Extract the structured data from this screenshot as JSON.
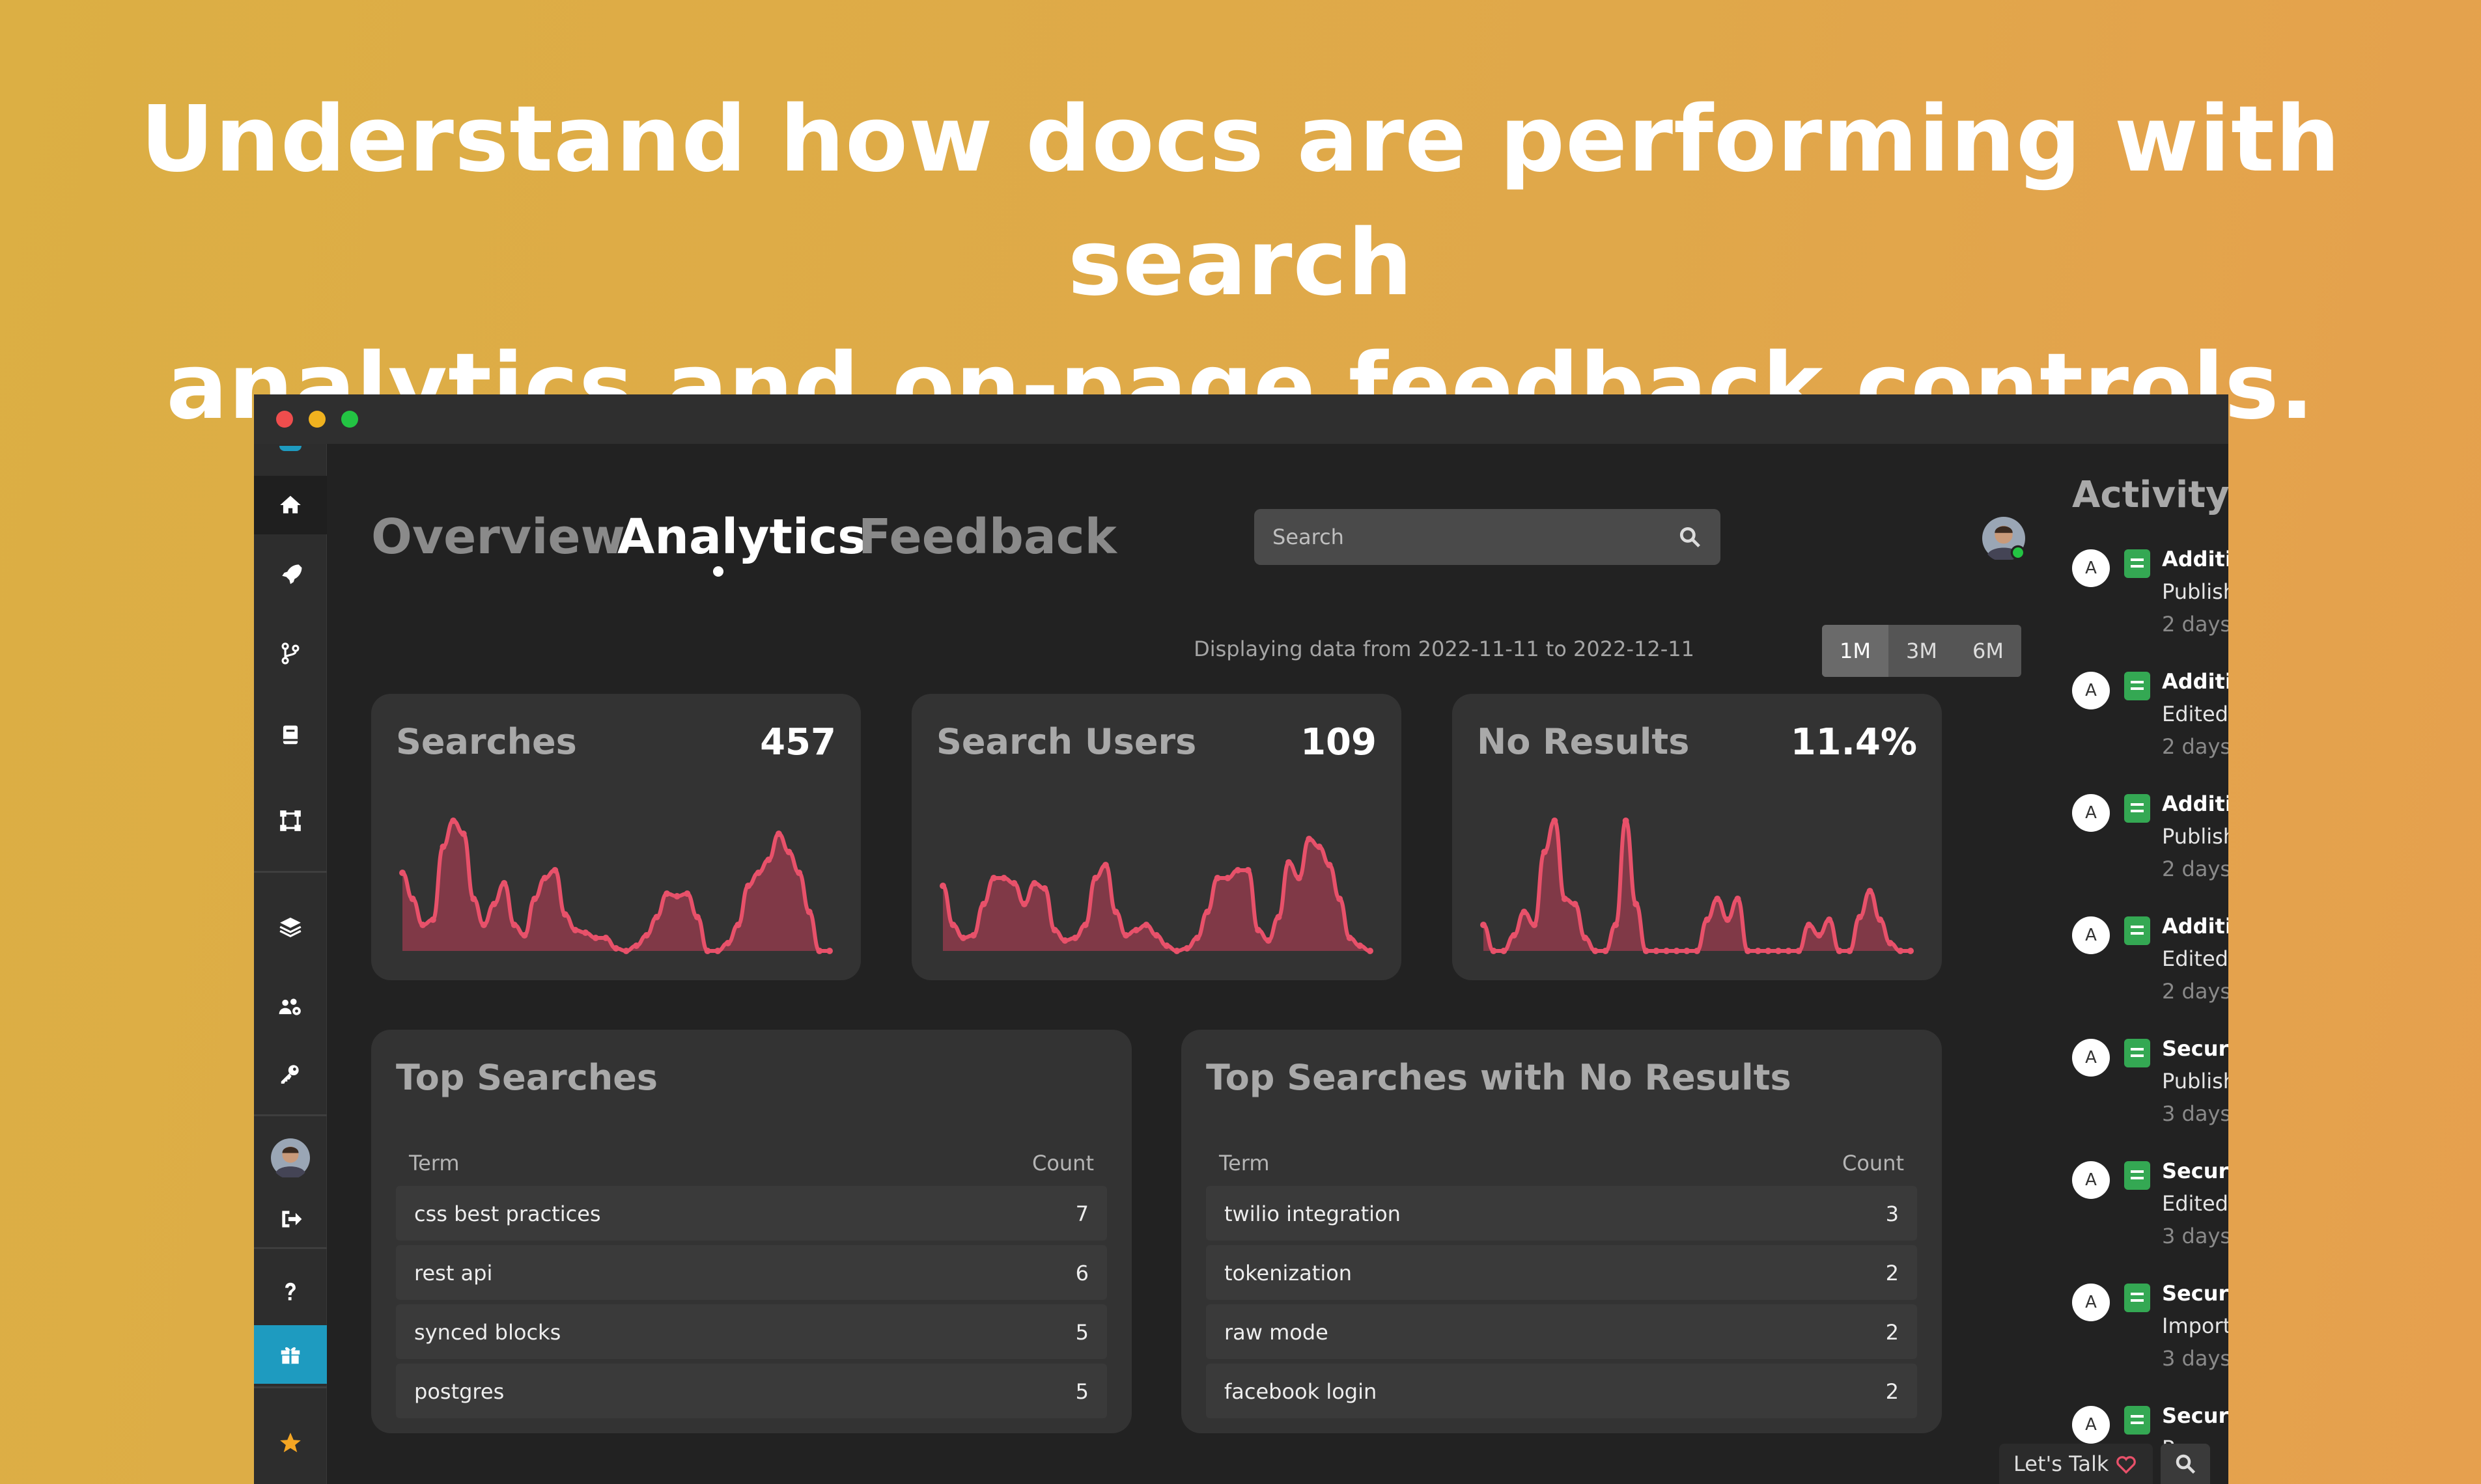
{
  "hero": {
    "line1": "Understand how docs are performing with search",
    "line2": "analytics and on-page feedback controls."
  },
  "nav": {
    "tabs": [
      "Overview",
      "Analytics",
      "Feedback"
    ],
    "active_tab": "Analytics"
  },
  "search": {
    "placeholder": "Search"
  },
  "date_range": {
    "text": "Displaying data from 2022-11-11 to 2022-12-11",
    "options": [
      "1M",
      "3M",
      "6M"
    ],
    "selected": "1M"
  },
  "stats": [
    {
      "title": "Searches",
      "value": "457",
      "series": [
        3,
        2,
        1,
        1.2,
        4,
        5,
        4.5,
        2,
        1,
        1.8,
        2.6,
        1,
        0.6,
        2,
        2.8,
        3.1,
        1.4,
        0.8,
        0.7,
        0.5,
        0.5,
        0.1,
        0,
        0.2,
        0.6,
        1.3,
        2.2,
        2.1,
        2.2,
        1.3,
        0,
        0,
        0.3,
        1,
        2.5,
        3,
        3.5,
        4.5,
        3.8,
        3,
        1.5,
        0,
        0
      ]
    },
    {
      "title": "Search Users",
      "value": "109",
      "series": [
        2.5,
        1,
        0.5,
        0.6,
        1.8,
        2.8,
        2.8,
        2.6,
        1.8,
        2.6,
        2.4,
        0.8,
        0.4,
        0.5,
        1,
        2.8,
        3.3,
        1.5,
        0.6,
        0.8,
        1,
        0.6,
        0.2,
        0,
        0.1,
        0.5,
        1.5,
        2.8,
        2.8,
        3.1,
        3.1,
        0.8,
        0.4,
        1.3,
        3.4,
        2.8,
        4.3,
        4,
        3.3,
        2,
        0.5,
        0.2,
        0
      ]
    },
    {
      "title": "No Results",
      "value": "11.4%",
      "series": [
        1,
        0,
        0,
        0.6,
        1.5,
        1,
        3.8,
        5,
        2,
        1.8,
        0.5,
        0,
        0,
        1,
        5,
        1.8,
        0,
        0,
        0,
        0,
        0,
        0,
        1.2,
        2,
        1.2,
        2,
        0,
        0,
        0,
        0,
        0,
        0,
        1,
        0.6,
        1.2,
        0,
        0,
        1.3,
        2.3,
        1.2,
        0.3,
        0,
        0
      ]
    }
  ],
  "top_searches": {
    "title": "Top Searches",
    "columns": [
      "Term",
      "Count"
    ],
    "rows": [
      {
        "term": "css best practices",
        "count": "7"
      },
      {
        "term": "rest api",
        "count": "6"
      },
      {
        "term": "synced blocks",
        "count": "5"
      },
      {
        "term": "postgres",
        "count": "5"
      }
    ]
  },
  "top_no_results": {
    "title": "Top Searches with No Results",
    "columns": [
      "Term",
      "Count"
    ],
    "rows": [
      {
        "term": "twilio integration",
        "count": "3"
      },
      {
        "term": "tokenization",
        "count": "2"
      },
      {
        "term": "raw mode",
        "count": "2"
      },
      {
        "term": "facebook login",
        "count": "2"
      }
    ]
  },
  "activity": {
    "title": "Activity",
    "items": [
      {
        "avatar": "A",
        "title": "Additic",
        "action": "Publish",
        "time": "2 days"
      },
      {
        "avatar": "A",
        "title": "Additic",
        "action": "Edited",
        "time": "2 days"
      },
      {
        "avatar": "A",
        "title": "Additic",
        "action": "Publish",
        "time": "2 days"
      },
      {
        "avatar": "A",
        "title": "Additic",
        "action": "Edited",
        "time": "2 days"
      },
      {
        "avatar": "A",
        "title": "Securi",
        "action": "Publish",
        "time": "3 days"
      },
      {
        "avatar": "A",
        "title": "Securi",
        "action": "Edited",
        "time": "3 days"
      },
      {
        "avatar": "A",
        "title": "Securi",
        "action": "Import",
        "time": "3 days"
      },
      {
        "avatar": "A",
        "title": "Securi",
        "action": "P",
        "time": ""
      }
    ]
  },
  "chat": {
    "label": "Let's Talk"
  },
  "colors": {
    "accent": "#e8516a",
    "fill": "#8e3b4b",
    "sidebar_active": "#1e9bc0",
    "star": "#f5a623"
  }
}
